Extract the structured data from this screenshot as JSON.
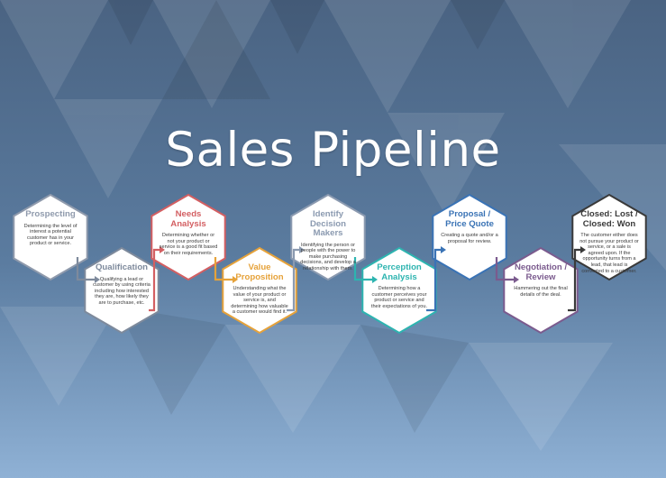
{
  "title": "Sales Pipeline",
  "stages": [
    {
      "name": "Prospecting",
      "description": "Determining the level of interest a potential customer has in your product or service.",
      "color": "#8f9aac"
    },
    {
      "name": "Qualification",
      "description": "Qualifying a lead or customer by using criteria including how interested they are, how likely they are to purchase, etc.",
      "color": "#7e8a9c"
    },
    {
      "name": "Needs Analysis",
      "description": "Determining whether or not your product or service is a good fit based on their requirements.",
      "color": "#d35f62"
    },
    {
      "name": "Value Proposition",
      "description": "Understanding what the value of your product or service is, and determining how valuable a customer would find it.",
      "color": "#e6a23a"
    },
    {
      "name": "Identify Decision Makers",
      "description": "Identifying the person or people with the power to make purchasing decisions, and develop a relationship with them.",
      "color": "#8b9ab0"
    },
    {
      "name": "Perception Analysis",
      "description": "Determining how a customer perceives your product or service and their expectations of you.",
      "color": "#2db4b0"
    },
    {
      "name": "Proposal / Price Quote",
      "description": "Creating a quote and/or a proposal for review.",
      "color": "#3a73b5"
    },
    {
      "name": "Negotiation / Review",
      "description": "Hammering out the final details of the deal.",
      "color": "#7b5b8e"
    },
    {
      "name": "Closed: Lost / Closed: Won",
      "description": "The customer either does not pursue your product or service, or a sale is agreed upon. If the opportunity turns from a lead, that lead is converted to a customer.",
      "color": "#3a3a3a"
    }
  ]
}
